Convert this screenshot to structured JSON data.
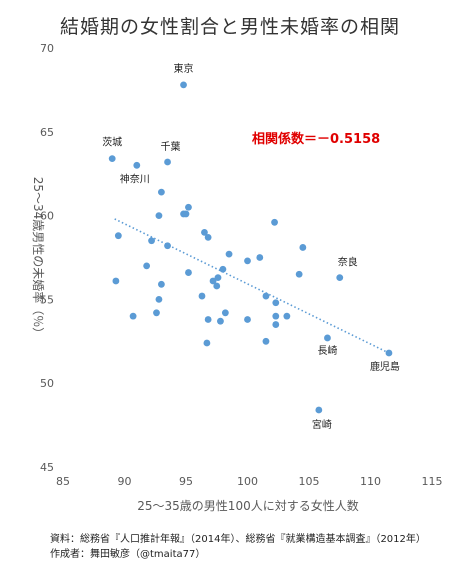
{
  "chart_data": {
    "type": "scatter",
    "title": "結婚期の女性割合と男性未婚率の相関",
    "xlabel": "25～35歳の男性100人に対する女性人数",
    "ylabel": "25～34歳男性の未婚率（％）",
    "xlim": [
      85,
      115
    ],
    "ylim": [
      45,
      70
    ],
    "xticks": [
      85,
      90,
      95,
      100,
      105,
      110,
      115
    ],
    "yticks": [
      45,
      50,
      55,
      60,
      65,
      70
    ],
    "grid": false,
    "color": "#5B9BD5",
    "trendline": {
      "style": "dotted",
      "x_range": [
        89.2,
        111.5
      ],
      "y_start": 59.8,
      "y_end": 51.8
    },
    "annotation": {
      "text": "相関係数＝－0.5158",
      "color": "#E00000"
    },
    "points": [
      {
        "x": 94.8,
        "y": 67.8,
        "label": "東京"
      },
      {
        "x": 89.0,
        "y": 63.4,
        "label": "茨城"
      },
      {
        "x": 91.0,
        "y": 63.0,
        "label": "神奈川"
      },
      {
        "x": 93.5,
        "y": 63.2,
        "label": "千葉"
      },
      {
        "x": 107.5,
        "y": 56.3,
        "label": "奈良"
      },
      {
        "x": 106.5,
        "y": 52.7,
        "label": "長崎"
      },
      {
        "x": 111.5,
        "y": 51.8,
        "label": "鹿児島"
      },
      {
        "x": 105.8,
        "y": 48.4,
        "label": "宮崎"
      },
      {
        "x": 93.0,
        "y": 61.4,
        "label": ""
      },
      {
        "x": 95.2,
        "y": 60.5,
        "label": ""
      },
      {
        "x": 94.8,
        "y": 60.1,
        "label": ""
      },
      {
        "x": 95.0,
        "y": 60.1,
        "label": ""
      },
      {
        "x": 92.8,
        "y": 60.0,
        "label": ""
      },
      {
        "x": 96.5,
        "y": 59.0,
        "label": ""
      },
      {
        "x": 96.8,
        "y": 58.7,
        "label": ""
      },
      {
        "x": 89.5,
        "y": 58.8,
        "label": ""
      },
      {
        "x": 92.2,
        "y": 58.5,
        "label": ""
      },
      {
        "x": 93.5,
        "y": 58.2,
        "label": ""
      },
      {
        "x": 95.2,
        "y": 56.6,
        "label": ""
      },
      {
        "x": 91.8,
        "y": 57.0,
        "label": ""
      },
      {
        "x": 98.5,
        "y": 57.7,
        "label": ""
      },
      {
        "x": 100.0,
        "y": 57.3,
        "label": ""
      },
      {
        "x": 101.0,
        "y": 57.5,
        "label": ""
      },
      {
        "x": 102.2,
        "y": 59.6,
        "label": ""
      },
      {
        "x": 104.5,
        "y": 58.1,
        "label": ""
      },
      {
        "x": 104.2,
        "y": 56.5,
        "label": ""
      },
      {
        "x": 98.0,
        "y": 56.8,
        "label": ""
      },
      {
        "x": 97.2,
        "y": 56.1,
        "label": ""
      },
      {
        "x": 97.6,
        "y": 56.3,
        "label": ""
      },
      {
        "x": 97.5,
        "y": 55.8,
        "label": ""
      },
      {
        "x": 89.3,
        "y": 56.1,
        "label": ""
      },
      {
        "x": 93.0,
        "y": 55.9,
        "label": ""
      },
      {
        "x": 92.8,
        "y": 55.0,
        "label": ""
      },
      {
        "x": 96.3,
        "y": 55.2,
        "label": ""
      },
      {
        "x": 101.5,
        "y": 55.2,
        "label": ""
      },
      {
        "x": 102.3,
        "y": 54.8,
        "label": ""
      },
      {
        "x": 90.7,
        "y": 54.0,
        "label": ""
      },
      {
        "x": 92.6,
        "y": 54.2,
        "label": ""
      },
      {
        "x": 98.2,
        "y": 54.2,
        "label": ""
      },
      {
        "x": 96.8,
        "y": 53.8,
        "label": ""
      },
      {
        "x": 97.8,
        "y": 53.7,
        "label": ""
      },
      {
        "x": 100.0,
        "y": 53.8,
        "label": ""
      },
      {
        "x": 102.3,
        "y": 54.0,
        "label": ""
      },
      {
        "x": 103.2,
        "y": 54.0,
        "label": ""
      },
      {
        "x": 102.3,
        "y": 53.5,
        "label": ""
      },
      {
        "x": 96.7,
        "y": 52.4,
        "label": ""
      },
      {
        "x": 101.5,
        "y": 52.5,
        "label": ""
      }
    ]
  },
  "footer": {
    "source": "資料：総務省『人口推計年報』（2014年）、総務省『就業構造基本調査』（2012年）",
    "author": "作成者：舞田敏彦（@tmaita77）"
  }
}
